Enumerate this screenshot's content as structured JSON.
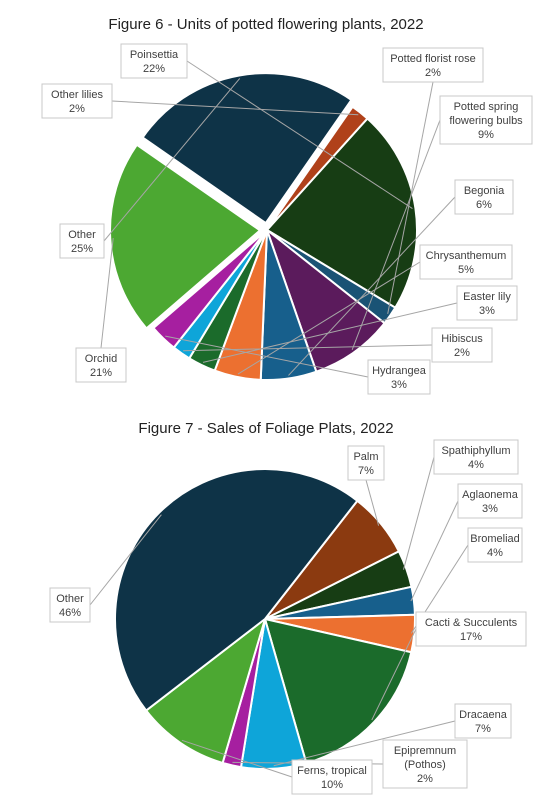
{
  "chart_data": [
    {
      "type": "pie",
      "title": "Figure 6 - Units of potted flowering plants, 2022",
      "categories": [
        "Poinsettia",
        "Potted florist rose",
        "Potted spring flowering bulbs",
        "Begonia",
        "Chrysanthemum",
        "Easter lily",
        "Hibiscus",
        "Hydrangea",
        "Orchid",
        "Other",
        "Other lilies"
      ],
      "label_lines": [
        [
          "Poinsettia"
        ],
        [
          "Potted florist rose"
        ],
        [
          "Potted spring",
          "flowering bulbs"
        ],
        [
          "Begonia"
        ],
        [
          "Chrysanthemum"
        ],
        [
          "Easter lily"
        ],
        [
          "Hibiscus"
        ],
        [
          "Hydrangea"
        ],
        [
          "Orchid"
        ],
        [
          "Other"
        ],
        [
          "Other lilies"
        ]
      ],
      "value_labels": [
        "22%",
        "2%",
        "9%",
        "6%",
        "5%",
        "3%",
        "2%",
        "3%",
        "21%",
        "25%",
        "2%"
      ],
      "values": [
        22,
        2,
        9,
        6,
        5,
        3,
        2,
        3,
        21,
        25,
        2
      ],
      "colors": [
        "#173d14",
        "#1a5375",
        "#5b1b5c",
        "#175f8c",
        "#ec7030",
        "#1b6b2b",
        "#0ea5d9",
        "#a61fa0",
        "#4ca832",
        "#0e3347",
        "#b0411a"
      ],
      "legend": "none",
      "data_labels": "outside with leader lines"
    },
    {
      "type": "pie",
      "title": "Figure 7 - Sales of Foliage Plats, 2022",
      "categories": [
        "Palm",
        "Spathiphyllum",
        "Aglaonema",
        "Bromeliad",
        "Cacti & Succulents",
        "Dracaena",
        "Epipremnum (Pothos)",
        "Ferns, tropical",
        "Other"
      ],
      "label_lines": [
        [
          "Palm"
        ],
        [
          "Spathiphyllum"
        ],
        [
          "Aglaonema"
        ],
        [
          "Bromeliad"
        ],
        [
          "Cacti & Succulents"
        ],
        [
          "Dracaena"
        ],
        [
          "Epipremnum",
          "(Pothos)"
        ],
        [
          "Ferns, tropical"
        ],
        [
          "Other"
        ]
      ],
      "value_labels": [
        "7%",
        "4%",
        "3%",
        "4%",
        "17%",
        "7%",
        "2%",
        "10%",
        "46%"
      ],
      "values": [
        7,
        4,
        3,
        4,
        17,
        7,
        2,
        10,
        46
      ],
      "colors": [
        "#8b3a10",
        "#173d14",
        "#175f8c",
        "#ec7030",
        "#1b6b2b",
        "#0ea5d9",
        "#a61fa0",
        "#4ca832",
        "#0e3347"
      ],
      "legend": "none",
      "data_labels": "outside with leader lines"
    }
  ]
}
